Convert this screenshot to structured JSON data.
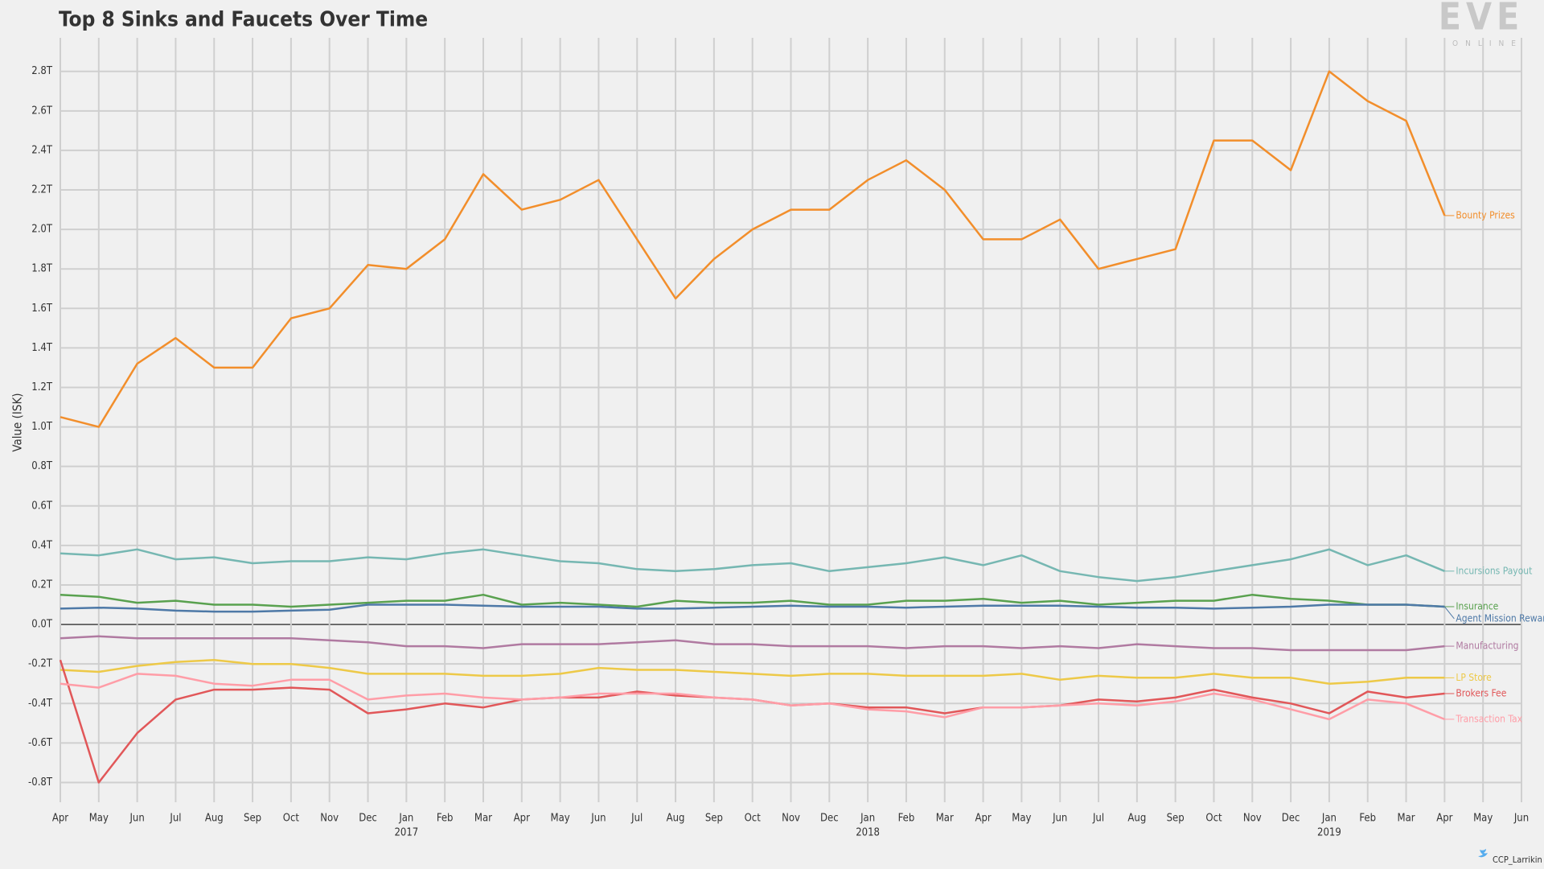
{
  "chart_data": {
    "type": "line",
    "title": "Top 8 Sinks and Faucets Over Time",
    "y_label": "Value (ISK)",
    "categories": [
      "Apr",
      "May",
      "Jun",
      "Jul",
      "Aug",
      "Sep",
      "Oct",
      "Nov",
      "Dec",
      "Jan",
      "Feb",
      "Mar",
      "Apr",
      "May",
      "Jun",
      "Jul",
      "Aug",
      "Sep",
      "Oct",
      "Nov",
      "Dec",
      "Jan",
      "Feb",
      "Mar",
      "Apr",
      "May",
      "Jun",
      "Jul",
      "Aug",
      "Sep",
      "Oct",
      "Nov",
      "Dec",
      "Jan",
      "Feb",
      "Mar",
      "Apr",
      "May",
      "Jun"
    ],
    "year_labels": [
      "2017",
      "2018",
      "2019"
    ],
    "ylim": [
      -0.9,
      2.97
    ],
    "yticks": [
      {
        "value": -0.8,
        "label": "-0.8T"
      },
      {
        "value": -0.6,
        "label": "-0.6T"
      },
      {
        "value": -0.4,
        "label": "-0.4T"
      },
      {
        "value": -0.2,
        "label": "-0.2T"
      },
      {
        "value": 0,
        "label": "0.0T"
      },
      {
        "value": 0.2,
        "label": "0.2T"
      },
      {
        "value": 0.4,
        "label": "0.4T"
      },
      {
        "value": 0.6,
        "label": "0.6T"
      },
      {
        "value": 0.8,
        "label": "0.8T"
      },
      {
        "value": 1.0,
        "label": "1.0T"
      },
      {
        "value": 1.2,
        "label": "1.2T"
      },
      {
        "value": 1.4,
        "label": "1.4T"
      },
      {
        "value": 1.6,
        "label": "1.6T"
      },
      {
        "value": 1.8,
        "label": "1.8T"
      },
      {
        "value": 2.0,
        "label": "2.0T"
      },
      {
        "value": 2.2,
        "label": "2.2T"
      },
      {
        "value": 2.4,
        "label": "2.4T"
      },
      {
        "value": 2.6,
        "label": "2.6T"
      },
      {
        "value": 2.8,
        "label": "2.8T"
      }
    ],
    "grid": true,
    "series": [
      {
        "name": "Bounty Prizes",
        "color": "#f28e2b",
        "values": [
          1.05,
          1.0,
          1.32,
          1.45,
          1.3,
          1.3,
          1.55,
          1.6,
          1.82,
          1.8,
          1.95,
          2.28,
          2.1,
          2.15,
          2.25,
          1.95,
          1.65,
          1.85,
          2.0,
          2.1,
          2.1,
          2.25,
          2.35,
          2.2,
          1.95,
          1.95,
          2.05,
          1.8,
          1.85,
          1.9,
          2.45,
          2.45,
          2.3,
          2.8,
          2.65,
          2.55,
          2.07,
          null,
          null
        ]
      },
      {
        "name": "Incursions Payout",
        "color": "#76b7b2",
        "values": [
          0.36,
          0.35,
          0.38,
          0.33,
          0.34,
          0.31,
          0.32,
          0.32,
          0.34,
          0.33,
          0.36,
          0.38,
          0.35,
          0.32,
          0.31,
          0.28,
          0.27,
          0.28,
          0.3,
          0.31,
          0.27,
          0.29,
          0.31,
          0.34,
          0.3,
          0.35,
          0.27,
          0.24,
          0.22,
          0.24,
          0.27,
          0.3,
          0.33,
          0.38,
          0.3,
          0.35,
          0.27,
          null,
          null
        ]
      },
      {
        "name": "Insurance",
        "color": "#59a14f",
        "values": [
          0.15,
          0.14,
          0.11,
          0.12,
          0.1,
          0.1,
          0.09,
          0.1,
          0.11,
          0.12,
          0.12,
          0.15,
          0.1,
          0.11,
          0.1,
          0.09,
          0.12,
          0.11,
          0.11,
          0.12,
          0.1,
          0.1,
          0.12,
          0.12,
          0.13,
          0.11,
          0.12,
          0.1,
          0.11,
          0.12,
          0.12,
          0.15,
          0.13,
          0.12,
          0.1,
          0.1,
          0.09,
          null,
          null
        ]
      },
      {
        "name": "Agent Mission Rewards",
        "color": "#4e79a7",
        "values": [
          0.08,
          0.085,
          0.08,
          0.07,
          0.065,
          0.065,
          0.07,
          0.075,
          0.1,
          0.1,
          0.1,
          0.095,
          0.09,
          0.09,
          0.09,
          0.08,
          0.08,
          0.085,
          0.09,
          0.095,
          0.09,
          0.09,
          0.085,
          0.09,
          0.095,
          0.095,
          0.095,
          0.09,
          0.085,
          0.085,
          0.08,
          0.085,
          0.09,
          0.1,
          0.1,
          0.1,
          0.09,
          null,
          null
        ]
      },
      {
        "name": "Manufacturing",
        "color": "#b07aa1",
        "values": [
          -0.07,
          -0.06,
          -0.07,
          -0.07,
          -0.07,
          -0.07,
          -0.07,
          -0.08,
          -0.09,
          -0.11,
          -0.11,
          -0.12,
          -0.1,
          -0.1,
          -0.1,
          -0.09,
          -0.08,
          -0.1,
          -0.1,
          -0.11,
          -0.11,
          -0.11,
          -0.12,
          -0.11,
          -0.11,
          -0.12,
          -0.11,
          -0.12,
          -0.1,
          -0.11,
          -0.12,
          -0.12,
          -0.13,
          -0.13,
          -0.13,
          -0.13,
          -0.11,
          null,
          null
        ]
      },
      {
        "name": "LP Store",
        "color": "#edc948",
        "values": [
          -0.23,
          -0.24,
          -0.21,
          -0.19,
          -0.18,
          -0.2,
          -0.2,
          -0.22,
          -0.25,
          -0.25,
          -0.25,
          -0.26,
          -0.26,
          -0.25,
          -0.22,
          -0.23,
          -0.23,
          -0.24,
          -0.25,
          -0.26,
          -0.25,
          -0.25,
          -0.26,
          -0.26,
          -0.26,
          -0.25,
          -0.28,
          -0.26,
          -0.27,
          -0.27,
          -0.25,
          -0.27,
          -0.27,
          -0.3,
          -0.29,
          -0.27,
          -0.27,
          null,
          null
        ]
      },
      {
        "name": "Brokers Fee",
        "color": "#e15759",
        "values": [
          -0.18,
          -0.8,
          -0.55,
          -0.38,
          -0.33,
          -0.33,
          -0.32,
          -0.33,
          -0.45,
          -0.43,
          -0.4,
          -0.42,
          -0.38,
          -0.37,
          -0.37,
          -0.34,
          -0.36,
          -0.37,
          -0.38,
          -0.41,
          -0.4,
          -0.42,
          -0.42,
          -0.45,
          -0.42,
          -0.42,
          -0.41,
          -0.38,
          -0.39,
          -0.37,
          -0.33,
          -0.37,
          -0.4,
          -0.45,
          -0.34,
          -0.37,
          -0.35,
          null,
          null
        ]
      },
      {
        "name": "Transaction Tax",
        "color": "#ff9da7",
        "values": [
          -0.3,
          -0.32,
          -0.25,
          -0.26,
          -0.3,
          -0.31,
          -0.28,
          -0.28,
          -0.38,
          -0.36,
          -0.35,
          -0.37,
          -0.38,
          -0.37,
          -0.35,
          -0.35,
          -0.35,
          -0.37,
          -0.38,
          -0.41,
          -0.4,
          -0.43,
          -0.44,
          -0.47,
          -0.42,
          -0.42,
          -0.41,
          -0.4,
          -0.41,
          -0.39,
          -0.35,
          -0.38,
          -0.43,
          -0.48,
          -0.38,
          -0.4,
          -0.48,
          null,
          null
        ]
      }
    ]
  },
  "logo": {
    "title": "EVE",
    "subtitle": "ONLINE"
  },
  "credit": "CCP_Larrikin"
}
